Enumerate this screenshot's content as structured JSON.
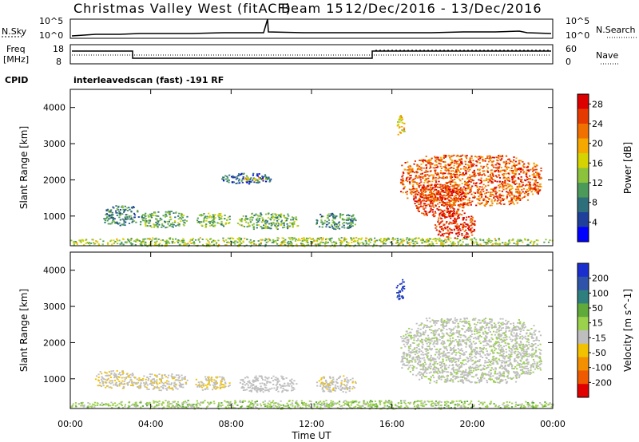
{
  "header": {
    "title": "Christmas Valley West (fitACF)",
    "beam": "Beam 15",
    "dates": "12/Dec/2016 - 13/Dec/2016"
  },
  "strips": {
    "nsky_label": "N.Sky",
    "nsky_ticks": [
      "10^5",
      "10^0"
    ],
    "nsearch_label": "N.Search",
    "nsearch_ticks": [
      "10^5",
      "10^0"
    ],
    "freq_label_1": "Freq",
    "freq_label_2": "[MHz]",
    "freq_ticks": [
      "18",
      "8"
    ],
    "nave_label": "Nave",
    "nave_ticks": [
      "60",
      "0"
    ],
    "cpid_label": "CPID",
    "cpid_value": "interleavedscan (fast) -191 RF"
  },
  "colors": {
    "power_scale": [
      "#0000ff",
      "#1e3f9a",
      "#2e6f7c",
      "#4b9a5a",
      "#8cc33c",
      "#d6d400",
      "#f5a800",
      "#f07000",
      "#e63b00",
      "#dc0000"
    ],
    "velocity_scale": [
      "#1a2ecf",
      "#2e53a8",
      "#2f7f7f",
      "#5faa3a",
      "#9bd24b",
      "#bebebe",
      "#f2c200",
      "#f29000",
      "#ef5a00",
      "#e10000"
    ],
    "ground_scatter": "#bebebe"
  },
  "chart_data": [
    {
      "type": "heatmap",
      "name": "Power panel",
      "ylabel": "Slant Range [km]",
      "xlabel": "",
      "xlim_hours": [
        0,
        24
      ],
      "ylim": [
        180,
        4500
      ],
      "yticks": [
        "1000",
        "2000",
        "3000",
        "4000"
      ],
      "xticks": [
        "00:00",
        "04:00",
        "08:00",
        "12:00",
        "16:00",
        "20:00",
        "00:00"
      ],
      "colorbar": {
        "label": "Power [dB]",
        "range": [
          0,
          30
        ],
        "ticks": [
          "4",
          "8",
          "12",
          "16",
          "20",
          "24",
          "28"
        ]
      },
      "regions": [
        {
          "t": [
            0.0,
            24.0
          ],
          "r": [
            180,
            420
          ],
          "value": 14
        },
        {
          "t": [
            1.6,
            3.4
          ],
          "r": [
            750,
            1300
          ],
          "value": 9
        },
        {
          "t": [
            3.4,
            5.8
          ],
          "r": [
            700,
            1150
          ],
          "value": 11
        },
        {
          "t": [
            6.2,
            7.9
          ],
          "r": [
            700,
            1100
          ],
          "value": 13
        },
        {
          "t": [
            8.3,
            11.3
          ],
          "r": [
            650,
            1100
          ],
          "value": 12
        },
        {
          "t": [
            12.2,
            14.2
          ],
          "r": [
            650,
            1100
          ],
          "value": 10
        },
        {
          "t": [
            16.4,
            23.4
          ],
          "r": [
            1300,
            2700
          ],
          "value": 24
        },
        {
          "t": [
            17.1,
            19.6
          ],
          "r": [
            1000,
            1900
          ],
          "value": 26
        },
        {
          "t": [
            18.1,
            20.1
          ],
          "r": [
            400,
            1100
          ],
          "value": 27
        },
        {
          "t": [
            16.2,
            16.6
          ],
          "r": [
            3200,
            3800
          ],
          "value": 18
        },
        {
          "t": [
            7.5,
            10.0
          ],
          "r": [
            1900,
            2200
          ],
          "value": 6
        },
        {
          "t": [
            8.5,
            9.7
          ],
          "r": [
            2000,
            2100
          ],
          "value": 18
        }
      ]
    },
    {
      "type": "heatmap",
      "name": "Velocity panel",
      "ylabel": "Slant Range [km]",
      "xlabel": "Time UT",
      "xlim_hours": [
        0,
        24
      ],
      "ylim": [
        180,
        4500
      ],
      "yticks": [
        "1000",
        "2000",
        "3000",
        "4000"
      ],
      "xticks": [
        "00:00",
        "04:00",
        "08:00",
        "12:00",
        "16:00",
        "20:00",
        "00:00"
      ],
      "colorbar": {
        "label": "Velocity [m s^-1]",
        "range": [
          -250,
          250
        ],
        "ticks": [
          "200",
          "100",
          "50",
          "15",
          "-15",
          "-50",
          "-100",
          "-200"
        ]
      },
      "regions": [
        {
          "t": [
            0.0,
            24.0
          ],
          "r": [
            180,
            420
          ],
          "value": 30
        },
        {
          "t": [
            1.2,
            3.2
          ],
          "r": [
            750,
            1250
          ],
          "value": -40
        },
        {
          "t": [
            3.2,
            5.8
          ],
          "r": [
            700,
            1150
          ],
          "value": -35
        },
        {
          "t": [
            6.2,
            7.9
          ],
          "r": [
            700,
            1100
          ],
          "value": -40
        },
        {
          "t": [
            8.3,
            11.3
          ],
          "r": [
            650,
            1100
          ],
          "value": -20
        },
        {
          "t": [
            12.2,
            14.2
          ],
          "r": [
            650,
            1100
          ],
          "value": -30
        },
        {
          "t": [
            16.4,
            23.4
          ],
          "r": [
            900,
            2700
          ],
          "value": 0
        },
        {
          "t": [
            16.2,
            16.6
          ],
          "r": [
            3200,
            3800
          ],
          "value": 200
        }
      ]
    }
  ]
}
